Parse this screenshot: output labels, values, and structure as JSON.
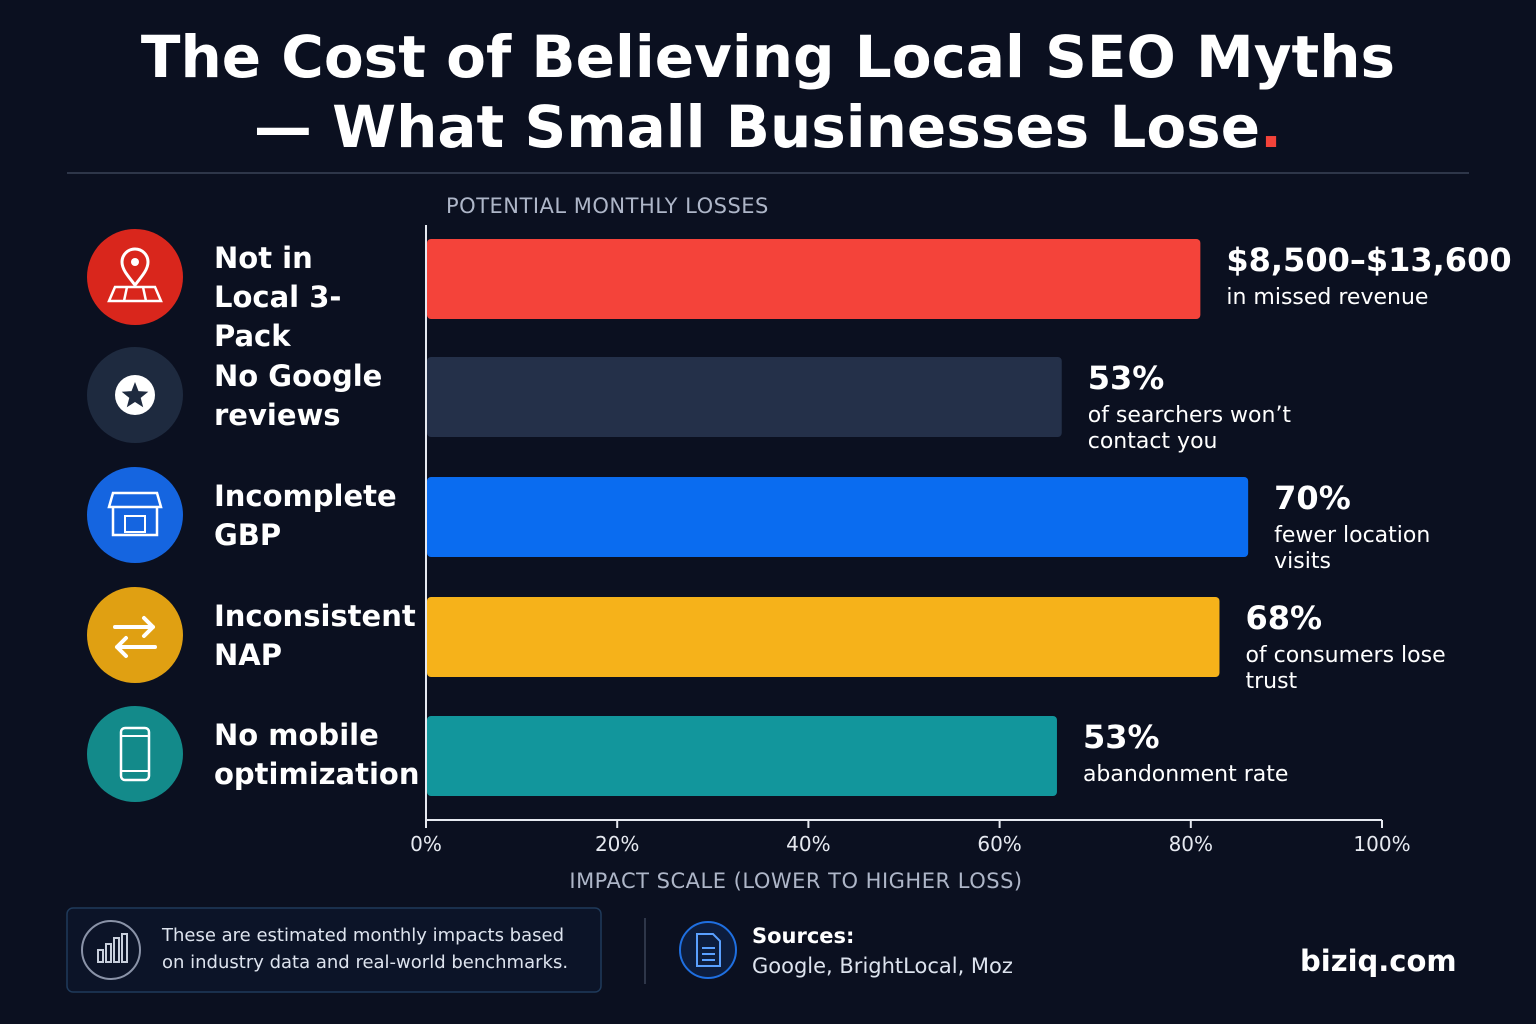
{
  "chart_data": {
    "type": "hbar",
    "title": "The Cost of Believing Local SEO Myths — What Small Businesses Lose.",
    "subtitle": "POTENTIAL MONTHLY LOSSES",
    "x_label": "IMPACT SCALE (LOWER TO HIGHER LOSS)",
    "categories": [
      "Not in Local 3-Pack",
      "No Google reviews",
      "Incomplete GBP",
      "Inconsistent NAP",
      "No mobile optimization"
    ],
    "values": [
      81,
      66.5,
      86,
      83,
      66
    ],
    "colors": [
      "#f4433a",
      "#243049",
      "#0a6cf0",
      "#f6b21a",
      "#12969c"
    ],
    "icon_colors": [
      "#d9261c",
      "#1e2a3f",
      "#1565e0",
      "#e0a012",
      "#138a8a"
    ],
    "callouts": [
      {
        "headline": "$8,500–$13,600",
        "text": "in missed revenue"
      },
      {
        "headline": "53%",
        "text": "of searchers won’t contact you"
      },
      {
        "headline": "70%",
        "text": "fewer location visits"
      },
      {
        "headline": "68%",
        "text": "of consumers lose trust"
      },
      {
        "headline": "53%",
        "text": "abandonment rate"
      }
    ],
    "xlim": [
      0,
      100
    ],
    "xticks": [
      {
        "value": 0,
        "label": "0%"
      },
      {
        "value": 20,
        "label": "20%"
      },
      {
        "value": 40,
        "label": "40%"
      },
      {
        "value": 60,
        "label": "60%"
      },
      {
        "value": 80,
        "label": "80%"
      },
      {
        "value": 100,
        "label": "100%"
      }
    ]
  },
  "footer": {
    "note": "These are estimated monthly impacts based on industry data and real-world benchmarks.",
    "sources_label": "Sources:",
    "sources": "Google, BrightLocal, Moz",
    "brand": "biziq.com"
  }
}
